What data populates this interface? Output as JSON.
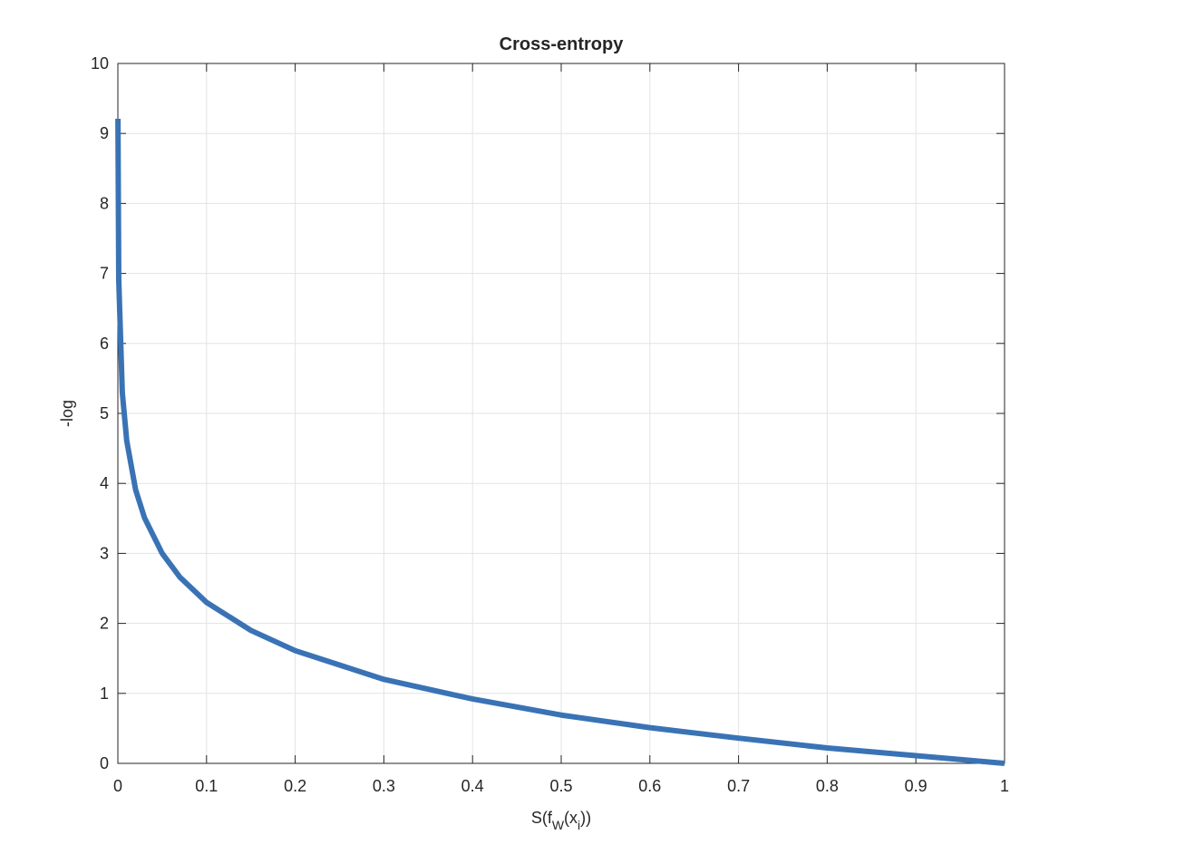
{
  "chart_data": {
    "type": "line",
    "title": "Cross-entropy",
    "ylabel": "-log",
    "xlabel_parts": [
      "S(f",
      "W",
      "(x",
      "i",
      "))"
    ],
    "series": [
      {
        "color": "#3a73b5",
        "x": [
          0.0001,
          0.001,
          0.005,
          0.01,
          0.02,
          0.03,
          0.05,
          0.07,
          0.1,
          0.15,
          0.2,
          0.3,
          0.4,
          0.5,
          0.6,
          0.7,
          0.8,
          0.9,
          1
        ],
        "values": [
          9.21,
          6.91,
          5.3,
          4.61,
          3.91,
          3.51,
          3.0,
          2.66,
          2.3,
          1.9,
          1.61,
          1.2,
          0.92,
          0.69,
          0.51,
          0.36,
          0.22,
          0.11,
          0
        ]
      }
    ],
    "xlim": [
      0,
      1
    ],
    "xticks": [
      0,
      0.1,
      0.2,
      0.3,
      0.4,
      0.5,
      0.6,
      0.7,
      0.8,
      0.9,
      1
    ],
    "ylim": [
      0,
      10
    ],
    "yticks": [
      0,
      1,
      2,
      3,
      4,
      5,
      6,
      7,
      8,
      9,
      10
    ],
    "grid": true
  }
}
